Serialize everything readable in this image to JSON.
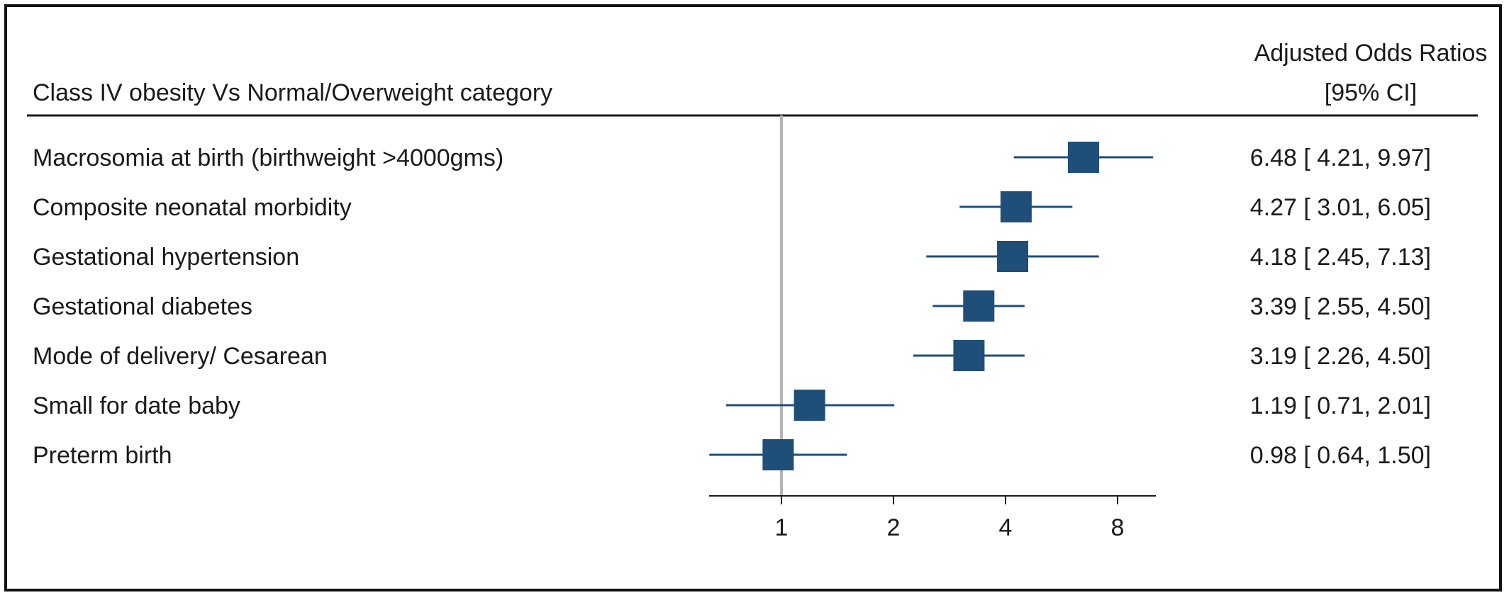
{
  "chart_data": {
    "type": "forest",
    "title": "Class IV obesity Vs Normal/Overweight category",
    "estimate_header": [
      "Adjusted Odds Ratios",
      "[95% CI]"
    ],
    "x_scale": "log2",
    "xlim": [
      0.58,
      10.5
    ],
    "xticks": [
      1,
      2,
      4,
      8
    ],
    "xtick_labels": [
      "1",
      "2",
      "4",
      "8"
    ],
    "reference_line": 1,
    "marker_color": "#1f4e79",
    "rows": [
      {
        "label": "Macrosomia at birth (birthweight >4000gms)",
        "or": 6.48,
        "lo": 4.21,
        "hi": 9.97,
        "text": "6.48 [ 4.21,  9.97]"
      },
      {
        "label": "Composite neonatal morbidity",
        "or": 4.27,
        "lo": 3.01,
        "hi": 6.05,
        "text": "4.27 [ 3.01,  6.05]"
      },
      {
        "label": "Gestational hypertension",
        "or": 4.18,
        "lo": 2.45,
        "hi": 7.13,
        "text": "4.18 [ 2.45,  7.13]"
      },
      {
        "label": "Gestational diabetes",
        "or": 3.39,
        "lo": 2.55,
        "hi": 4.5,
        "text": "3.39 [ 2.55,  4.50]"
      },
      {
        "label": "Mode of delivery/ Cesarean",
        "or": 3.19,
        "lo": 2.26,
        "hi": 4.5,
        "text": "3.19 [ 2.26,  4.50]"
      },
      {
        "label": "Small for date baby",
        "or": 1.19,
        "lo": 0.71,
        "hi": 2.01,
        "text": "1.19 [ 0.71,  2.01]"
      },
      {
        "label": "Preterm birth",
        "or": 0.98,
        "lo": 0.64,
        "hi": 1.5,
        "text": "0.98 [ 0.64,  1.50]"
      }
    ]
  }
}
